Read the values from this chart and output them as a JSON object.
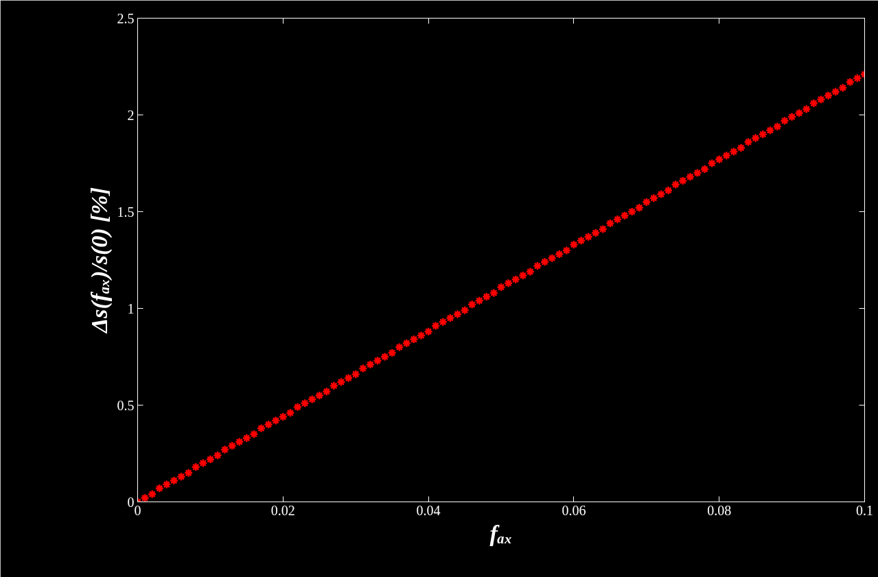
{
  "chart_data": {
    "type": "scatter",
    "xlabel": "fₐₓ",
    "ylabel": "Δs(fₐₓ)/s(0) [%]",
    "x": [
      0,
      0.001,
      0.002,
      0.003,
      0.004,
      0.005,
      0.006,
      0.007,
      0.008,
      0.009,
      0.01,
      0.011,
      0.012,
      0.013,
      0.014,
      0.015,
      0.016,
      0.017,
      0.018,
      0.019,
      0.02,
      0.021,
      0.022,
      0.023,
      0.024,
      0.025,
      0.026,
      0.027,
      0.028,
      0.029,
      0.03,
      0.031,
      0.032,
      0.033,
      0.034,
      0.035,
      0.036,
      0.037,
      0.038,
      0.039,
      0.04,
      0.041,
      0.042,
      0.043,
      0.044,
      0.045,
      0.046,
      0.047,
      0.048,
      0.049,
      0.05,
      0.051,
      0.052,
      0.053,
      0.054,
      0.055,
      0.056,
      0.057,
      0.058,
      0.059,
      0.06,
      0.061,
      0.062,
      0.063,
      0.064,
      0.065,
      0.066,
      0.067,
      0.068,
      0.069,
      0.07,
      0.071,
      0.072,
      0.073,
      0.074,
      0.075,
      0.076,
      0.077,
      0.078,
      0.079,
      0.08,
      0.081,
      0.082,
      0.083,
      0.084,
      0.085,
      0.086,
      0.087,
      0.088,
      0.089,
      0.09,
      0.091,
      0.092,
      0.093,
      0.094,
      0.095,
      0.096,
      0.097,
      0.098,
      0.099,
      0.1
    ],
    "series": [
      {
        "color": "#ff0000",
        "values": [
          0,
          0.02,
          0.04,
          0.07,
          0.09,
          0.11,
          0.13,
          0.15,
          0.18,
          0.2,
          0.22,
          0.24,
          0.27,
          0.29,
          0.31,
          0.33,
          0.35,
          0.38,
          0.4,
          0.42,
          0.44,
          0.46,
          0.49,
          0.51,
          0.53,
          0.55,
          0.57,
          0.6,
          0.62,
          0.64,
          0.66,
          0.69,
          0.71,
          0.73,
          0.75,
          0.77,
          0.8,
          0.82,
          0.84,
          0.86,
          0.88,
          0.91,
          0.93,
          0.95,
          0.97,
          0.99,
          1.02,
          1.04,
          1.06,
          1.08,
          1.11,
          1.13,
          1.15,
          1.17,
          1.19,
          1.22,
          1.24,
          1.26,
          1.28,
          1.3,
          1.33,
          1.35,
          1.37,
          1.39,
          1.41,
          1.44,
          1.46,
          1.48,
          1.5,
          1.52,
          1.55,
          1.57,
          1.59,
          1.61,
          1.64,
          1.66,
          1.68,
          1.7,
          1.72,
          1.75,
          1.77,
          1.79,
          1.81,
          1.83,
          1.86,
          1.88,
          1.9,
          1.92,
          1.94,
          1.97,
          1.99,
          2.01,
          2.03,
          2.06,
          2.08,
          2.1,
          2.12,
          2.14,
          2.17,
          2.19,
          2.21
        ]
      }
    ],
    "xlim": [
      0,
      0.1
    ],
    "ylim": [
      0,
      2.5
    ],
    "xticks": [
      0,
      0.02,
      0.04,
      0.06,
      0.08,
      0.1
    ],
    "yticks": [
      0,
      0.5,
      1,
      1.5,
      2,
      2.5
    ],
    "marker": "cross",
    "grid": false
  }
}
